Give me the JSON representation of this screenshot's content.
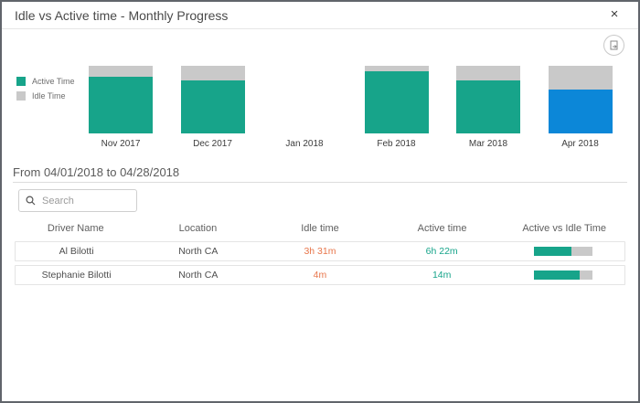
{
  "window": {
    "title": "Idle vs Active time - Monthly Progress",
    "close_label": "×"
  },
  "icons": {
    "close": "close-icon",
    "export": "export-image-icon",
    "search": "magnifier-icon"
  },
  "colors": {
    "active_teal": "#17a48a",
    "idle_gray": "#c9c9c9",
    "selected_blue": "#0c87d8",
    "idle_text_orange": "#e8764b"
  },
  "chart_data": {
    "type": "bar",
    "stacked": true,
    "unit": "percent",
    "categories": [
      "Nov 2017",
      "Dec 2017",
      "Jan 2018",
      "Feb 2018",
      "Mar 2018",
      "Apr 2018"
    ],
    "series": [
      {
        "name": "Active Time",
        "color": "#17a48a",
        "values": [
          84,
          78,
          null,
          92,
          78,
          65
        ]
      },
      {
        "name": "Idle Time",
        "color": "#c9c9c9",
        "values": [
          16,
          22,
          null,
          8,
          22,
          35
        ]
      }
    ],
    "selected_category": "Apr 2018",
    "selected_color": "#0c87d8",
    "ylim": [
      0,
      100
    ],
    "legend_position": "left",
    "axes_hidden": true,
    "grid": false
  },
  "period": {
    "label": "From 04/01/2018 to 04/28/2018"
  },
  "search": {
    "placeholder": "Search",
    "value": ""
  },
  "table": {
    "columns": [
      "Driver Name",
      "Location",
      "Idle time",
      "Active time",
      "Active vs Idle Time"
    ],
    "rows": [
      {
        "driver_name": "Al Bilotti",
        "location": "North CA",
        "idle_time": "3h 31m",
        "active_time": "6h 22m",
        "active_pct": 64
      },
      {
        "driver_name": "Stephanie Bilotti",
        "location": "North CA",
        "idle_time": "4m",
        "active_time": "14m",
        "active_pct": 78
      }
    ]
  }
}
